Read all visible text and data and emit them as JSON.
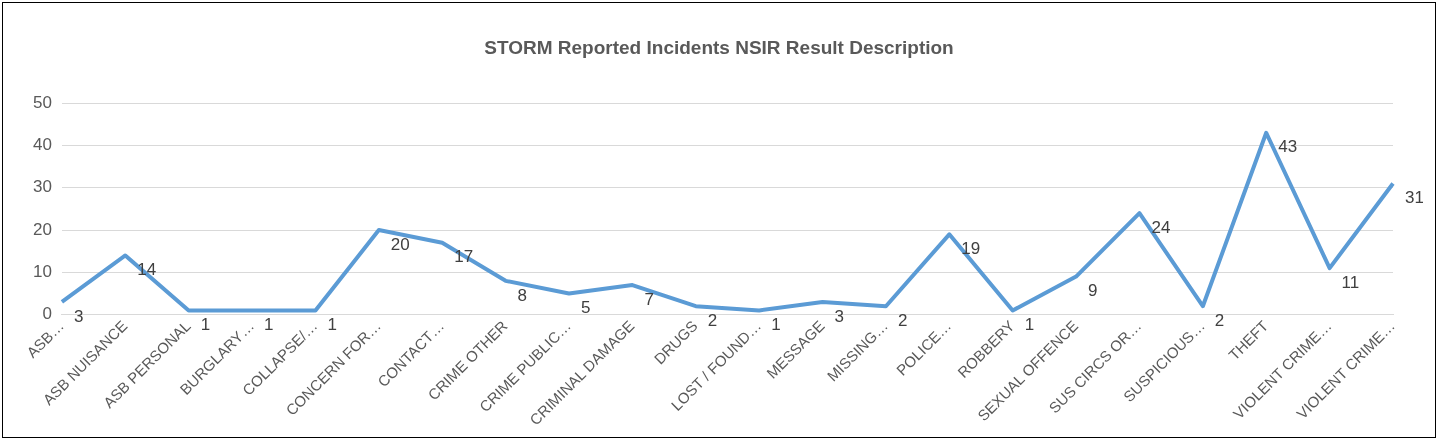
{
  "chart_data": {
    "type": "line",
    "title": "STORM Reported Incidents NSIR Result Description",
    "categories": [
      "ASB…",
      "ASB NUISANCE",
      "ASB PERSONAL",
      "BURGLARY…",
      "COLLAPSE/…",
      "CONCERN FOR…",
      "CONTACT…",
      "CRIME OTHER",
      "CRIME PUBLIC…",
      "CRIMINAL DAMAGE",
      "DRUGS",
      "LOST / FOUND…",
      "MESSAGE",
      "MISSING…",
      "POLICE…",
      "ROBBERY",
      "SEXUAL OFFENCE",
      "SUS CIRCS OR…",
      "SUSPICIOUS…",
      "THEFT",
      "VIOLENT CRIME…",
      "VIOLENT CRIME…"
    ],
    "series": [
      {
        "color": "#5b9bd5",
        "values": [
          3,
          14,
          1,
          1,
          1,
          20,
          17,
          8,
          5,
          7,
          2,
          1,
          3,
          2,
          19,
          1,
          9,
          24,
          2,
          43,
          11,
          31
        ]
      }
    ],
    "ylim": [
      0,
      50
    ],
    "yticks": [
      0,
      10,
      20,
      30,
      40,
      50
    ],
    "grid": "y",
    "legend": false,
    "marker": "none",
    "line_style": "solid",
    "data_labels": true
  }
}
